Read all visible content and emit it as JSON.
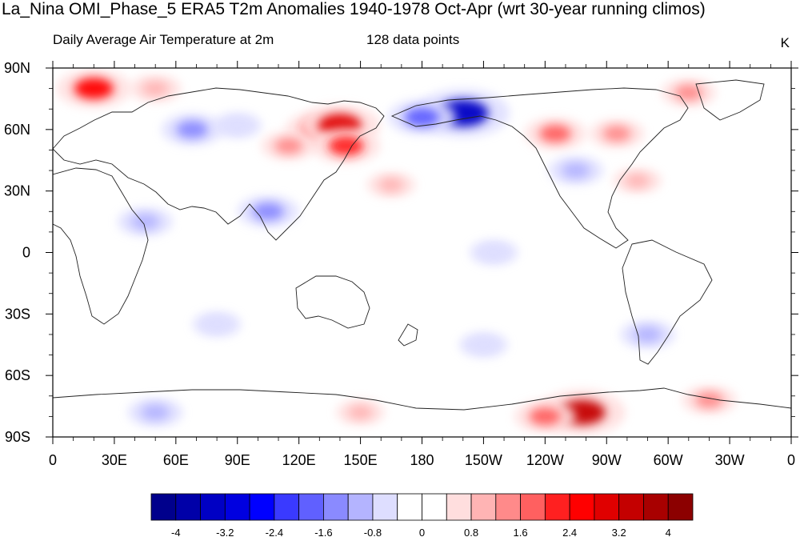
{
  "chart_data": {
    "type": "heatmap",
    "title": "La_Nina OMI_Phase_5 ERA5 T2m Anomalies 1940-1978 Oct-Apr (wrt 30-year running climos)",
    "subtitle_left": "Daily Average Air Temperature at 2m",
    "subtitle_center": "128 data points",
    "units": "K",
    "x_ticks": [
      "0",
      "30E",
      "60E",
      "90E",
      "120E",
      "150E",
      "180",
      "150W",
      "120W",
      "90W",
      "60W",
      "30W",
      "0"
    ],
    "y_ticks": [
      "90N",
      "60N",
      "30N",
      "0",
      "30S",
      "60S",
      "90S"
    ],
    "xlim": [
      0,
      360
    ],
    "ylim": [
      -90,
      90
    ],
    "colorbar": {
      "labels": [
        "-4",
        "-3.2",
        "-2.4",
        "-1.6",
        "-0.8",
        "0",
        "0.8",
        "1.6",
        "2.4",
        "3.2",
        "4"
      ],
      "levels": [
        -4,
        -3.6,
        -3.2,
        -2.8,
        -2.4,
        -2.0,
        -1.6,
        -1.2,
        -0.8,
        -0.4,
        0,
        0.4,
        0.8,
        1.2,
        1.6,
        2.0,
        2.4,
        2.8,
        3.2,
        3.6,
        4
      ],
      "colors": [
        "#00008c",
        "#0000a8",
        "#0000c4",
        "#0000e0",
        "#0000ff",
        "#3a3aff",
        "#6060ff",
        "#8a8aff",
        "#b4b4ff",
        "#dedeff",
        "#ffffff",
        "#ffffff",
        "#ffdede",
        "#ffb4b4",
        "#ff8a8a",
        "#ff6060",
        "#ff2020",
        "#ff0000",
        "#e00000",
        "#c40000",
        "#a80000",
        "#8c0000"
      ]
    },
    "anomalies": [
      {
        "lon": 20,
        "lat": 80,
        "value": 2.4
      },
      {
        "lon": 50,
        "lat": 80,
        "value": 1.0
      },
      {
        "lon": 68,
        "lat": 60,
        "value": -1.6
      },
      {
        "lon": 90,
        "lat": 62,
        "value": -0.8
      },
      {
        "lon": 130,
        "lat": 60,
        "value": 2.0
      },
      {
        "lon": 140,
        "lat": 62,
        "value": 2.8
      },
      {
        "lon": 143,
        "lat": 52,
        "value": 2.0
      },
      {
        "lon": 115,
        "lat": 52,
        "value": 1.2
      },
      {
        "lon": 165,
        "lat": 33,
        "value": 0.8
      },
      {
        "lon": 200,
        "lat": 68,
        "value": -3.6
      },
      {
        "lon": 180,
        "lat": 66,
        "value": -2.0
      },
      {
        "lon": 245,
        "lat": 58,
        "value": 1.6
      },
      {
        "lon": 275,
        "lat": 58,
        "value": 1.2
      },
      {
        "lon": 310,
        "lat": 78,
        "value": 1.2
      },
      {
        "lon": 255,
        "lat": 40,
        "value": -1.2
      },
      {
        "lon": 285,
        "lat": 35,
        "value": 0.8
      },
      {
        "lon": 105,
        "lat": 20,
        "value": -1.6
      },
      {
        "lon": 45,
        "lat": 15,
        "value": -1.2
      },
      {
        "lon": 215,
        "lat": 0,
        "value": -0.8
      },
      {
        "lon": 290,
        "lat": -40,
        "value": -1.2
      },
      {
        "lon": 50,
        "lat": -78,
        "value": -1.2
      },
      {
        "lon": 258,
        "lat": -78,
        "value": 3.2
      },
      {
        "lon": 240,
        "lat": -80,
        "value": 1.6
      },
      {
        "lon": 320,
        "lat": -72,
        "value": 1.2
      },
      {
        "lon": 150,
        "lat": -78,
        "value": 0.8
      },
      {
        "lon": 80,
        "lat": -35,
        "value": -0.8
      },
      {
        "lon": 210,
        "lat": -45,
        "value": -0.8
      }
    ]
  }
}
